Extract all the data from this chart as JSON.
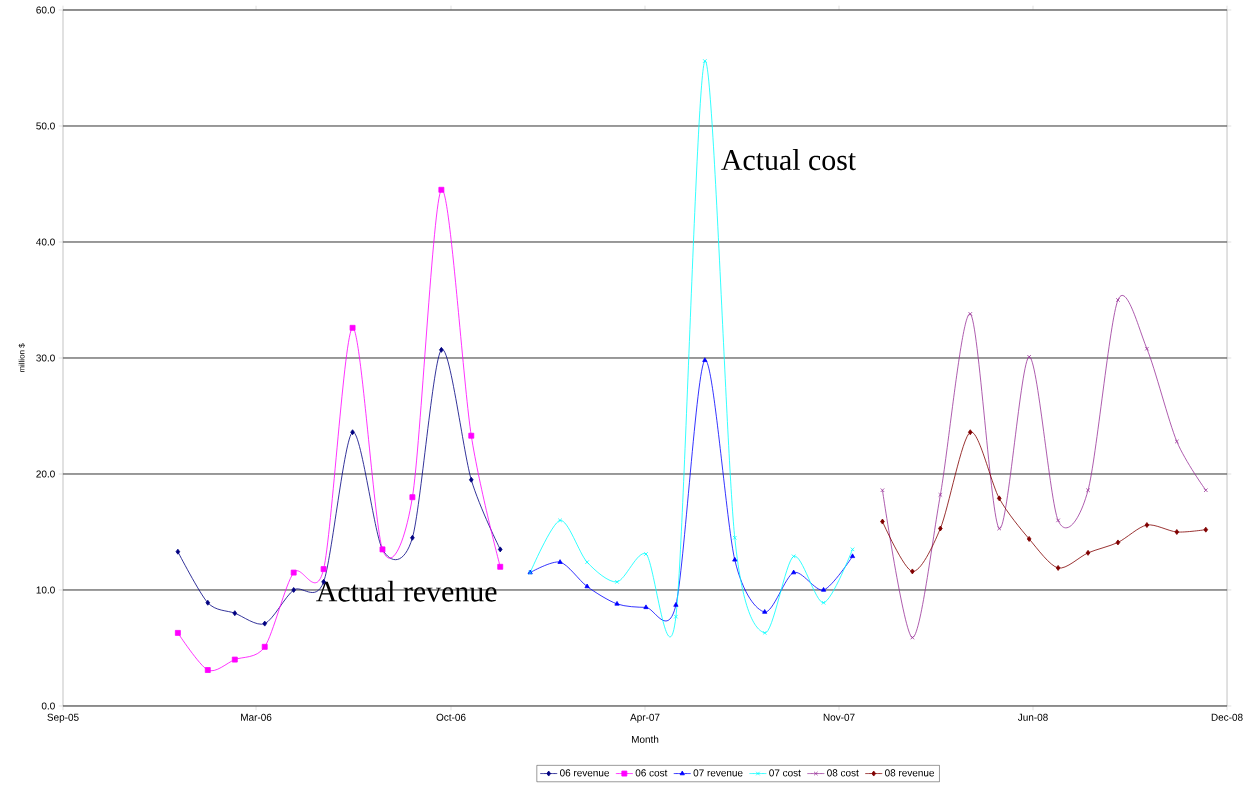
{
  "chart_data": {
    "type": "line",
    "xlabel": "Month",
    "ylabel": "million $",
    "annotations": [
      "Actual revenue",
      "Actual cost"
    ],
    "x": [
      "2006-01-01",
      "2006-02-01",
      "2006-03-01",
      "2006-04-01",
      "2006-05-01",
      "2006-06-01",
      "2006-07-01",
      "2006-08-01",
      "2006-09-01",
      "2006-10-01",
      "2006-11-01",
      "2006-12-01"
    ],
    "series": [
      {
        "name": "06 revenue",
        "color": "#000080",
        "marker": "diamond",
        "values": [
          13.3,
          8.9,
          8.0,
          7.1,
          10.0,
          10.7,
          23.6,
          13.5,
          14.5,
          30.7,
          19.5,
          13.5
        ]
      },
      {
        "name": "06 cost",
        "color": "#ff00ff",
        "marker": "square",
        "values": [
          6.3,
          3.1,
          4.0,
          5.1,
          11.5,
          11.8,
          32.6,
          13.5,
          18.0,
          44.5,
          23.3,
          12.0
        ]
      },
      {
        "name": "07 revenue",
        "color": "#0000ff",
        "marker": "triangle",
        "x": [
          "2007-01-01",
          "2007-02-01",
          "2007-03-01",
          "2007-04-01",
          "2007-05-01",
          "2007-06-01",
          "2007-07-01",
          "2007-08-01",
          "2007-09-01",
          "2007-10-01",
          "2007-11-01",
          "2007-12-01"
        ],
        "values": [
          11.5,
          12.4,
          10.3,
          8.8,
          8.5,
          8.7,
          29.8,
          12.6,
          8.1,
          11.5,
          10.0,
          12.9
        ]
      },
      {
        "name": "07 cost",
        "color": "#00ffff",
        "marker": "cross",
        "x": [
          "2007-01-01",
          "2007-02-01",
          "2007-03-01",
          "2007-04-01",
          "2007-05-01",
          "2007-06-01",
          "2007-07-01",
          "2007-08-01",
          "2007-09-01",
          "2007-10-01",
          "2007-11-01",
          "2007-12-01"
        ],
        "values": [
          11.5,
          16.0,
          12.4,
          10.7,
          13.1,
          7.7,
          55.6,
          14.5,
          6.3,
          12.9,
          8.9,
          13.5
        ]
      },
      {
        "name": "08 cost",
        "color": "#993399",
        "marker": "cross",
        "x": [
          "2008-01-01",
          "2008-02-01",
          "2008-03-01",
          "2008-04-01",
          "2008-05-01",
          "2008-06-01",
          "2008-07-01",
          "2008-08-01",
          "2008-09-01",
          "2008-10-01",
          "2008-11-01",
          "2008-12-01"
        ],
        "values": [
          18.6,
          5.9,
          18.2,
          33.8,
          15.3,
          30.1,
          16.0,
          18.6,
          35.0,
          30.8,
          22.8,
          18.6
        ]
      },
      {
        "name": "08 revenue",
        "color": "#800000",
        "marker": "diamond",
        "x": [
          "2008-01-01",
          "2008-02-01",
          "2008-03-01",
          "2008-04-01",
          "2008-05-01",
          "2008-06-01",
          "2008-07-01",
          "2008-08-01",
          "2008-09-01",
          "2008-10-01",
          "2008-11-01",
          "2008-12-01"
        ],
        "values": [
          15.9,
          11.6,
          15.3,
          23.6,
          17.9,
          14.4,
          11.9,
          13.2,
          14.1,
          15.6,
          15.0,
          15.2
        ]
      }
    ],
    "xlim": [
      "2005-09-04",
      "2008-12-23"
    ],
    "xticks": [
      {
        "value": "2005-09-04",
        "label": "Sep-05"
      },
      {
        "value": "2006-03-23",
        "label": "Mar-06"
      },
      {
        "value": "2006-10-11",
        "label": "Oct-06"
      },
      {
        "value": "2007-04-30",
        "label": "Apr-07"
      },
      {
        "value": "2007-11-17",
        "label": "Nov-07"
      },
      {
        "value": "2008-06-05",
        "label": "Jun-08"
      },
      {
        "value": "2008-12-23",
        "label": "Dec-08"
      }
    ],
    "ylim": [
      0,
      60
    ],
    "yticks": [
      {
        "value": 0,
        "label": "0.0"
      },
      {
        "value": 10,
        "label": "10.0"
      },
      {
        "value": 20,
        "label": "20.0"
      },
      {
        "value": 30,
        "label": "30.0"
      },
      {
        "value": 40,
        "label": "40.0"
      },
      {
        "value": 50,
        "label": "50.0"
      },
      {
        "value": 60,
        "label": "60.0"
      }
    ],
    "grid": "y",
    "legend": "bottom"
  }
}
